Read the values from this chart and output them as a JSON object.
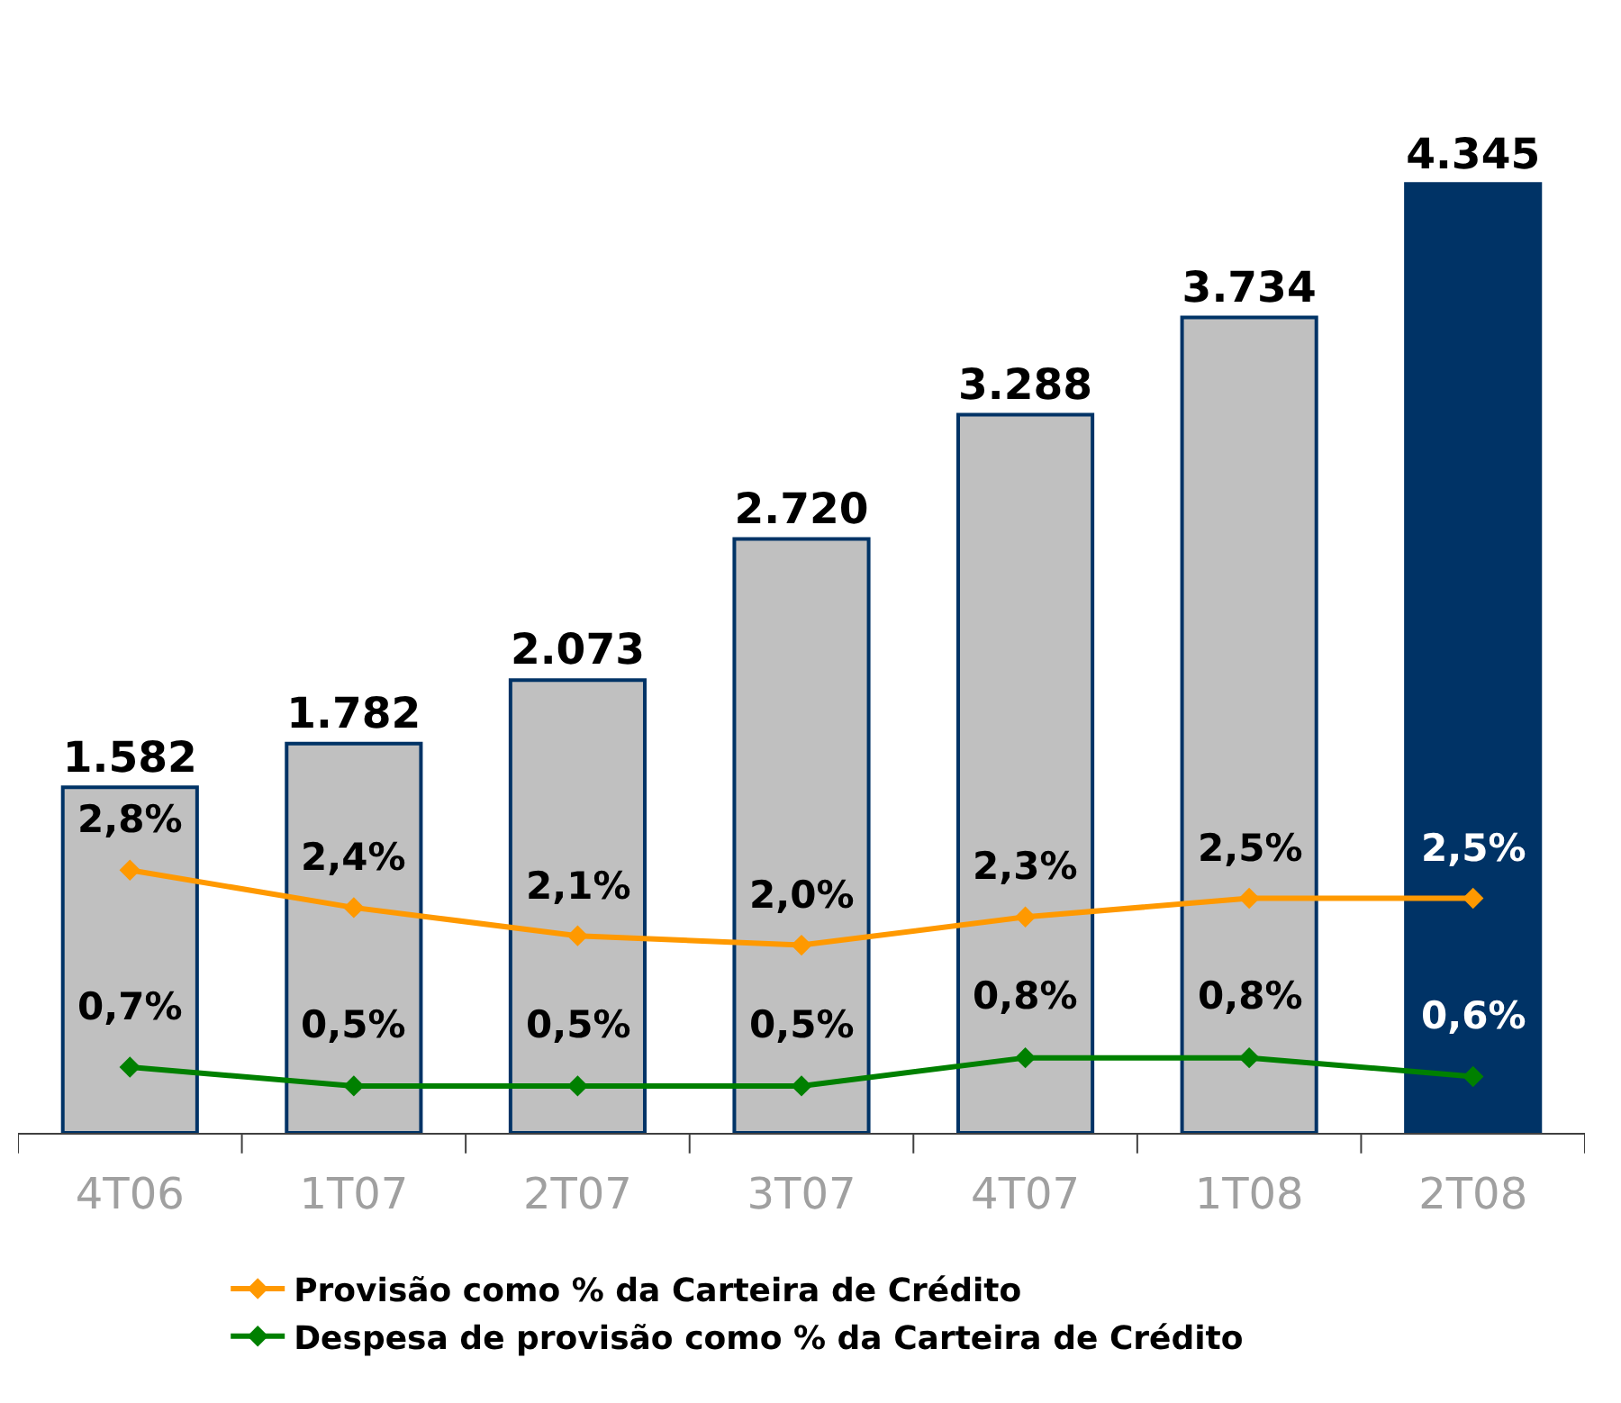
{
  "chart_data": {
    "type": "bar",
    "categories": [
      "4T06",
      "1T07",
      "2T07",
      "3T07",
      "4T07",
      "1T08",
      "2T08"
    ],
    "series": [
      {
        "values": [
          1582,
          1782,
          2073,
          2720,
          3288,
          3734,
          4345
        ],
        "colors": [
          "#c0c0c0",
          "#c0c0c0",
          "#c0c0c0",
          "#c0c0c0",
          "#c0c0c0",
          "#c0c0c0",
          "#003366"
        ],
        "value_labels": [
          "1.582",
          "1.782",
          "2.073",
          "2.720",
          "3.288",
          "3.734",
          "4.345"
        ]
      },
      {
        "type": "line",
        "axis": "y2",
        "name": "Provisão como % da Carteira de Crédito",
        "color": "#ff9900",
        "values": [
          2.8,
          2.4,
          2.1,
          2.0,
          2.3,
          2.5,
          2.5
        ],
        "value_labels": [
          "2,8%",
          "2,4%",
          "2,1%",
          "2,0%",
          "2,3%",
          "2,5%",
          "2,5%"
        ]
      },
      {
        "type": "line",
        "axis": "y2",
        "name": "Despesa de provisão como % da Carteira de Crédito",
        "color": "#008000",
        "values": [
          0.7,
          0.5,
          0.5,
          0.5,
          0.8,
          0.8,
          0.6
        ],
        "value_labels": [
          "0,7%",
          "0,5%",
          "0,5%",
          "0,5%",
          "0,8%",
          "0,8%",
          "0,6%"
        ]
      }
    ],
    "marker": "diamond",
    "line_style": "solid",
    "legend": "bottom"
  }
}
